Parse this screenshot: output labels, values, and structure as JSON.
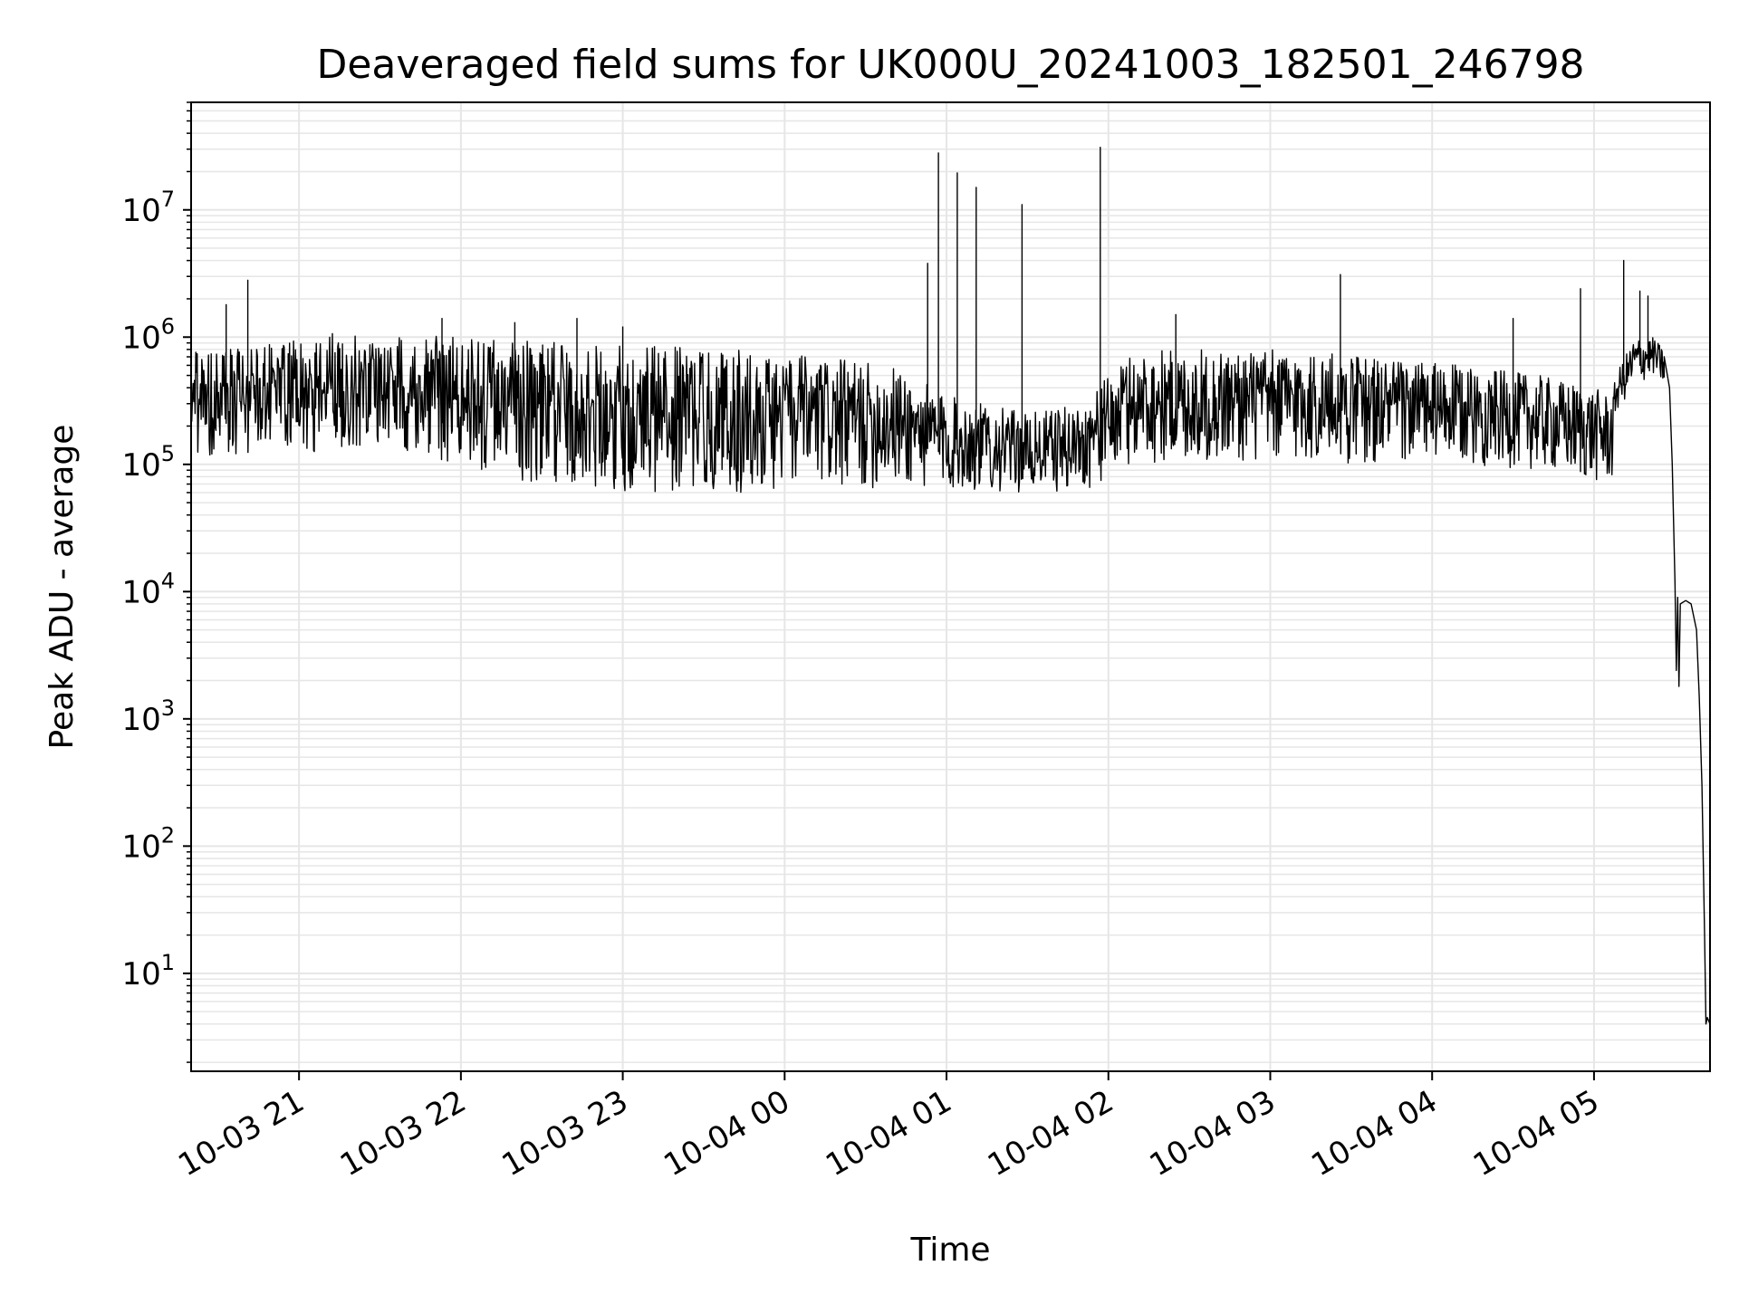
{
  "chart_data": {
    "type": "line",
    "title": "Deaveraged field sums for UK000U_20241003_182501_246798",
    "xlabel": "Time",
    "ylabel": "Peak ADU - average",
    "yscale": "log",
    "grid": true,
    "line_color": "#000000",
    "grid_color": "#e6e6e6",
    "xlim": [
      "2024-10-03 20:20",
      "2024-10-04 05:43"
    ],
    "ylim": [
      1.7,
      70000000
    ],
    "xticks": [
      {
        "t": "2024-10-03 21:00",
        "label": "10-03 21"
      },
      {
        "t": "2024-10-03 22:00",
        "label": "10-03 22"
      },
      {
        "t": "2024-10-03 23:00",
        "label": "10-03 23"
      },
      {
        "t": "2024-10-04 00:00",
        "label": "10-04 00"
      },
      {
        "t": "2024-10-04 01:00",
        "label": "10-04 01"
      },
      {
        "t": "2024-10-04 02:00",
        "label": "10-04 02"
      },
      {
        "t": "2024-10-04 03:00",
        "label": "10-04 03"
      },
      {
        "t": "2024-10-04 04:00",
        "label": "10-04 04"
      },
      {
        "t": "2024-10-04 05:00",
        "label": "10-04 05"
      }
    ],
    "yticks": [
      {
        "value": 10,
        "base": "10",
        "exp": "1"
      },
      {
        "value": 100,
        "base": "10",
        "exp": "2"
      },
      {
        "value": 1000,
        "base": "10",
        "exp": "3"
      },
      {
        "value": 10000,
        "base": "10",
        "exp": "4"
      },
      {
        "value": 100000,
        "base": "10",
        "exp": "5"
      },
      {
        "value": 1000000,
        "base": "10",
        "exp": "6"
      },
      {
        "value": 10000000,
        "base": "10",
        "exp": "7"
      }
    ],
    "series": [
      {
        "envelope": [
          {
            "t": "2024-10-03 20:20",
            "low": 120000,
            "high": 1000000
          },
          {
            "t": "2024-10-03 20:35",
            "low": 80000,
            "high": 800000
          },
          {
            "t": "2024-10-03 20:50",
            "low": 150000,
            "high": 900000
          },
          {
            "t": "2024-10-03 21:10",
            "low": 120000,
            "high": 1100000
          },
          {
            "t": "2024-10-03 21:30",
            "low": 150000,
            "high": 1000000
          },
          {
            "t": "2024-10-03 21:50",
            "low": 110000,
            "high": 1100000
          },
          {
            "t": "2024-10-03 22:10",
            "low": 80000,
            "high": 1000000
          },
          {
            "t": "2024-10-03 22:40",
            "low": 65000,
            "high": 900000
          },
          {
            "t": "2024-10-03 23:10",
            "low": 60000,
            "high": 850000
          },
          {
            "t": "2024-10-03 23:40",
            "low": 60000,
            "high": 800000
          },
          {
            "t": "2024-10-04 00:10",
            "low": 60000,
            "high": 700000
          },
          {
            "t": "2024-10-04 00:40",
            "low": 65000,
            "high": 600000
          },
          {
            "t": "2024-10-04 01:00",
            "low": 60000,
            "high": 350000
          },
          {
            "t": "2024-10-04 01:30",
            "low": 60000,
            "high": 250000
          },
          {
            "t": "2024-10-04 01:50",
            "low": 60000,
            "high": 300000
          },
          {
            "t": "2024-10-04 02:10",
            "low": 100000,
            "high": 800000
          },
          {
            "t": "2024-10-04 02:40",
            "low": 100000,
            "high": 800000
          },
          {
            "t": "2024-10-04 03:10",
            "low": 100000,
            "high": 800000
          },
          {
            "t": "2024-10-04 03:40",
            "low": 100000,
            "high": 700000
          },
          {
            "t": "2024-10-04 04:10",
            "low": 100000,
            "high": 600000
          },
          {
            "t": "2024-10-04 04:40",
            "low": 90000,
            "high": 500000
          },
          {
            "t": "2024-10-04 05:00",
            "low": 70000,
            "high": 400000
          },
          {
            "t": "2024-10-04 05:07",
            "low": 70000,
            "high": 350000
          },
          {
            "t": "2024-10-04 05:08",
            "low": 250000,
            "high": 500000
          },
          {
            "t": "2024-10-04 05:15",
            "low": 400000,
            "high": 1000000
          },
          {
            "t": "2024-10-04 05:22",
            "low": 500000,
            "high": 1000000
          },
          {
            "t": "2024-10-04 05:26",
            "low": 400000,
            "high": 800000
          }
        ],
        "spikes": [
          {
            "t": "2024-10-03 20:33",
            "value": 1800000
          },
          {
            "t": "2024-10-03 20:41",
            "value": 2800000
          },
          {
            "t": "2024-10-03 21:53",
            "value": 1400000
          },
          {
            "t": "2024-10-03 22:20",
            "value": 1300000
          },
          {
            "t": "2024-10-03 22:43",
            "value": 1400000
          },
          {
            "t": "2024-10-03 23:00",
            "value": 1200000
          },
          {
            "t": "2024-10-04 00:53",
            "value": 3800000
          },
          {
            "t": "2024-10-04 00:57",
            "value": 28000000
          },
          {
            "t": "2024-10-04 01:04",
            "value": 19500000
          },
          {
            "t": "2024-10-04 01:11",
            "value": 15000000
          },
          {
            "t": "2024-10-04 01:28",
            "value": 11000000
          },
          {
            "t": "2024-10-04 01:57",
            "value": 31000000
          },
          {
            "t": "2024-10-04 02:25",
            "value": 1500000
          },
          {
            "t": "2024-10-04 03:26",
            "value": 3100000
          },
          {
            "t": "2024-10-04 04:30",
            "value": 1400000
          },
          {
            "t": "2024-10-04 04:55",
            "value": 2400000
          },
          {
            "t": "2024-10-04 05:11",
            "value": 4000000
          },
          {
            "t": "2024-10-04 05:17",
            "value": 2300000
          },
          {
            "t": "2024-10-04 05:20",
            "value": 2100000
          }
        ],
        "tail": [
          {
            "t": "2024-10-04 05:26",
            "value": 700000
          },
          {
            "t": "2024-10-04 05:28",
            "value": 400000
          },
          {
            "t": "2024-10-04 05:29",
            "value": 100000
          },
          {
            "t": "2024-10-04 05:30",
            "value": 12000
          },
          {
            "t": "2024-10-04 05:30.5",
            "value": 2400
          },
          {
            "t": "2024-10-04 05:31",
            "value": 9000
          },
          {
            "t": "2024-10-04 05:31.5",
            "value": 1800
          },
          {
            "t": "2024-10-04 05:32",
            "value": 8000
          },
          {
            "t": "2024-10-04 05:34",
            "value": 8500
          },
          {
            "t": "2024-10-04 05:36",
            "value": 8000
          },
          {
            "t": "2024-10-04 05:38",
            "value": 5000
          },
          {
            "t": "2024-10-04 05:39",
            "value": 1500
          },
          {
            "t": "2024-10-04 05:40",
            "value": 300
          },
          {
            "t": "2024-10-04 05:41",
            "value": 20
          },
          {
            "t": "2024-10-04 05:41.5",
            "value": 4
          },
          {
            "t": "2024-10-04 05:42",
            "value": 4.5
          },
          {
            "t": "2024-10-04 05:43",
            "value": 4
          }
        ]
      }
    ]
  }
}
